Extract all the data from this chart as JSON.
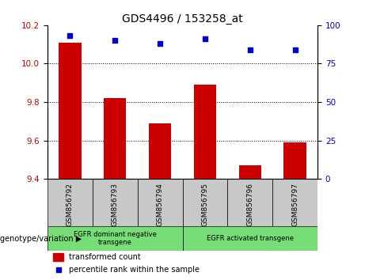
{
  "title": "GDS4496 / 153258_at",
  "categories": [
    "GSM856792",
    "GSM856793",
    "GSM856794",
    "GSM856795",
    "GSM856796",
    "GSM856797"
  ],
  "bar_values": [
    10.11,
    9.82,
    9.69,
    9.89,
    9.47,
    9.59
  ],
  "scatter_values": [
    93,
    90,
    88,
    91,
    84,
    84
  ],
  "bar_color": "#cc0000",
  "scatter_color": "#0000cc",
  "ylim_left": [
    9.4,
    10.2
  ],
  "ylim_right": [
    0,
    100
  ],
  "yticks_left": [
    9.4,
    9.6,
    9.8,
    10.0,
    10.2
  ],
  "yticks_right": [
    0,
    25,
    50,
    75,
    100
  ],
  "grid_values": [
    9.6,
    9.8,
    10.0
  ],
  "group1_label": "EGFR dominant negative\ntransgene",
  "group2_label": "EGFR activated transgene",
  "group1_count": 3,
  "group2_count": 3,
  "legend_bar_label": "transformed count",
  "legend_scatter_label": "percentile rank within the sample",
  "genotype_label": "genotype/variation",
  "bar_bottom": 9.4,
  "background_color": "#ffffff",
  "plot_bg_color": "#ffffff",
  "group_bg_color": "#77dd77",
  "tick_label_bg": "#c8c8c8",
  "n_cats": 6
}
